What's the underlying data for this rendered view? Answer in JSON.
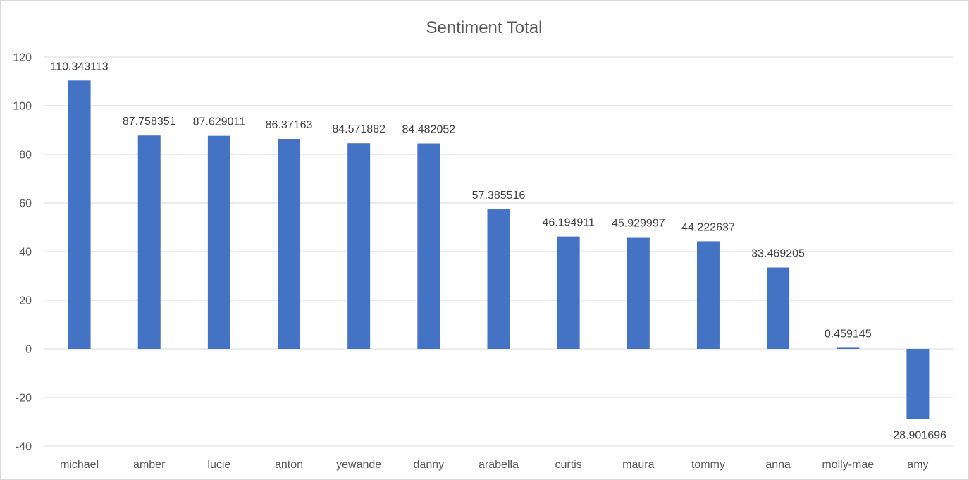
{
  "chart_data": {
    "type": "bar",
    "title": "Sentiment Total",
    "xlabel": "",
    "ylabel": "",
    "ylim": [
      -40,
      120
    ],
    "yticks": [
      -40,
      -20,
      0,
      20,
      40,
      60,
      80,
      100,
      120
    ],
    "grid": true,
    "legend": "none",
    "bar_color": "#4472C4",
    "categories": [
      "michael",
      "amber",
      "lucie",
      "anton",
      "yewande",
      "danny",
      "arabella",
      "curtis",
      "maura",
      "tommy",
      "anna",
      "molly-mae",
      "amy"
    ],
    "values": [
      110.343113,
      87.758351,
      87.629011,
      86.37163,
      84.571882,
      84.482052,
      57.385516,
      46.194911,
      45.929997,
      44.222637,
      33.469205,
      0.459145,
      -28.901696
    ],
    "data_labels": [
      "110.343113",
      "87.758351",
      "87.629011",
      "86.37163",
      "84.571882",
      "84.482052",
      "57.385516",
      "46.194911",
      "45.929997",
      "44.222637",
      "33.469205",
      "0.459145",
      "-28.901696"
    ]
  }
}
